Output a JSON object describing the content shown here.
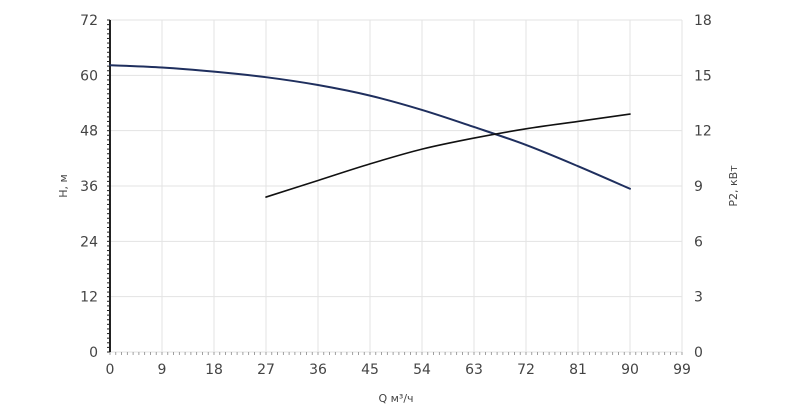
{
  "chart_data": {
    "type": "line",
    "xlabel": "Q м³/ч",
    "ylabel": "H, м",
    "y2label": "P2, кВт",
    "xlim": [
      0,
      99
    ],
    "ylim": [
      0,
      72
    ],
    "y2lim": [
      0,
      18
    ],
    "x_ticks": [
      "0",
      "9",
      "18",
      "27",
      "36",
      "45",
      "54",
      "63",
      "72",
      "81",
      "90",
      "99"
    ],
    "y_ticks": [
      "0",
      "12",
      "24",
      "36",
      "48",
      "60",
      "72"
    ],
    "y2_ticks": [
      "0",
      "3",
      "6",
      "9",
      "12",
      "15",
      "18"
    ],
    "grid": true,
    "series": [
      {
        "axis": "left",
        "color": "#1f2f5e",
        "x": [
          0,
          9,
          18,
          27,
          36,
          45,
          54,
          63,
          72,
          81,
          90
        ],
        "y": [
          62.2,
          61.7,
          60.8,
          59.6,
          57.9,
          55.6,
          52.5,
          48.8,
          44.9,
          40.3,
          35.4
        ]
      },
      {
        "axis": "right",
        "color": "#111111",
        "x": [
          27,
          36,
          45,
          54,
          63,
          72,
          81,
          90
        ],
        "y": [
          8.4,
          9.3,
          10.2,
          11.0,
          11.6,
          12.1,
          12.5,
          12.9
        ]
      }
    ]
  }
}
